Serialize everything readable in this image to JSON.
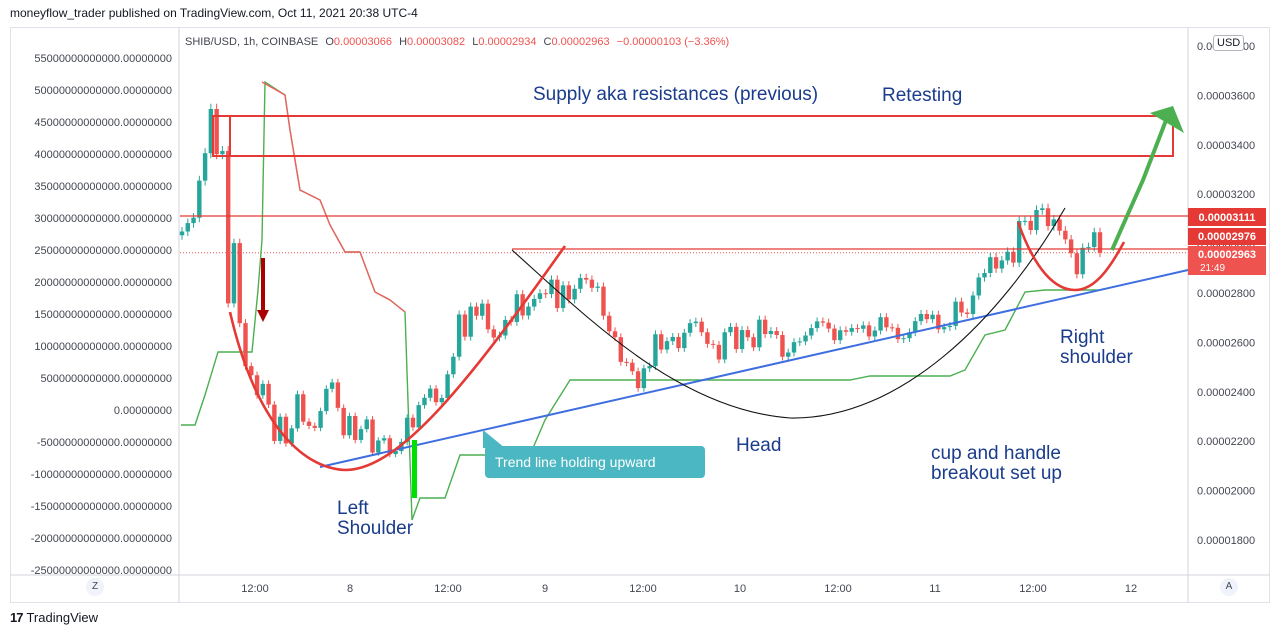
{
  "header": {
    "publisher": "moneyflow_trader published on TradingView.com, Oct 11, 2021 20:38 UTC-4"
  },
  "legend": {
    "symbol": "SHIB/USD, 1h, COINBASE",
    "o_label": "O",
    "o_value": "0.00003066",
    "h_label": "H",
    "h_value": "0.00003082",
    "l_label": "L",
    "l_value": "0.00002934",
    "c_label": "C",
    "c_value": "0.00002963",
    "change": "−0.00000103 (−3.36%)"
  },
  "currency_button": "USD",
  "footer": {
    "logo": "17",
    "brand": "TradingView"
  },
  "corner_left": "Z",
  "corner_right": "A",
  "price_labels": {
    "level1": "0.00003111",
    "level2": "0.00002976",
    "current": "0.00002963",
    "countdown": "21:49"
  },
  "annotations": {
    "supply": "Supply aka resistances (previous)",
    "retesting": "Retesting",
    "left1": "Left",
    "left2": "Shoulder",
    "head": "Head",
    "right1": "Right",
    "right2": "shoulder",
    "cup1": "cup and handle",
    "cup2": "breakout set up",
    "trend_callout": "Trend line holding upward"
  },
  "colors": {
    "up": "#26a69a",
    "down": "#ef5350",
    "annotation_text": "#1a3c8c",
    "trendline": "#3f6ee0",
    "green_line": "#4caf50",
    "resistance": "#e53935"
  },
  "chart_data": {
    "type": "candlestick",
    "symbol": "SHIB/USD",
    "timeframe": "1h",
    "exchange": "COINBASE",
    "right_axis": {
      "ticks": [
        "0.00003800",
        "0.00003600",
        "0.00003400",
        "0.00003200",
        "0.00003000",
        "0.00002800",
        "0.00002600",
        "0.00002400",
        "0.00002200",
        "0.00002000",
        "0.00001800"
      ],
      "ylim": [
        1.71e-05,
        3.83e-05
      ]
    },
    "left_axis": {
      "ticks": [
        "55000000000000.00000000",
        "50000000000000.00000000",
        "45000000000000.00000000",
        "40000000000000.00000000",
        "35000000000000.00000000",
        "30000000000000.00000000",
        "25000000000000.00000000",
        "20000000000000.00000000",
        "15000000000000.00000000",
        "10000000000000.00000000",
        "5000000000000.00000000",
        "0.00000000",
        "-5000000000000.00000000",
        "-10000000000000.00000000",
        "-15000000000000.00000000",
        "-20000000000000.00000000",
        "-25000000000000.00000000"
      ],
      "ylim": [
        -25000000000000,
        55000000000000
      ]
    },
    "x_ticks": [
      "12:00",
      "8",
      "12:00",
      "9",
      "12:00",
      "10",
      "12:00",
      "11",
      "12:00",
      "12"
    ],
    "closes": [
      3.049e-05,
      3.083e-05,
      3.105e-05,
      3.255e-05,
      3.366e-05,
      3.545e-05,
      3.362e-05,
      3.375e-05,
      2.758e-05,
      3.002e-05,
      2.678e-05,
      2.504e-05,
      2.467e-05,
      2.386e-05,
      2.432e-05,
      2.348e-05,
      2.201e-05,
      2.299e-05,
      2.191e-05,
      2.252e-05,
      2.39e-05,
      2.279e-05,
      2.262e-05,
      2.254e-05,
      2.322e-05,
      2.412e-05,
      2.438e-05,
      2.335e-05,
      2.224e-05,
      2.302e-05,
      2.205e-05,
      2.249e-05,
      2.288e-05,
      2.154e-05,
      2.203e-05,
      2.212e-05,
      2.148e-05,
      2.16e-05,
      2.197e-05,
      2.295e-05,
      2.256e-05,
      2.346e-05,
      2.376e-05,
      2.413e-05,
      2.358e-05,
      2.375e-05,
      2.471e-05,
      2.542e-05,
      2.713e-05,
      2.623e-05,
      2.745e-05,
      2.708e-05,
      2.757e-05,
      2.653e-05,
      2.62e-05,
      2.628e-05,
      2.691e-05,
      2.683e-05,
      2.795e-05,
      2.709e-05,
      2.745e-05,
      2.776e-05,
      2.799e-05,
      2.796e-05,
      2.854e-05,
      2.739e-05,
      2.831e-05,
      2.774e-05,
      2.817e-05,
      2.861e-05,
      2.854e-05,
      2.821e-05,
      2.826e-05,
      2.708e-05,
      2.645e-05,
      2.621e-05,
      2.521e-05,
      2.518e-05,
      2.483e-05,
      2.415e-05,
      2.495e-05,
      2.504e-05,
      2.633e-05,
      2.571e-05,
      2.605e-05,
      2.622e-05,
      2.577e-05,
      2.639e-05,
      2.678e-05,
      2.684e-05,
      2.641e-05,
      2.594e-05,
      2.59e-05,
      2.531e-05,
      2.641e-05,
      2.663e-05,
      2.573e-05,
      2.65e-05,
      2.621e-05,
      2.58e-05,
      2.692e-05,
      2.634e-05,
      2.646e-05,
      2.63e-05,
      2.542e-05,
      2.559e-05,
      2.601e-05,
      2.604e-05,
      2.628e-05,
      2.658e-05,
      2.685e-05,
      2.68e-05,
      2.656e-05,
      2.609e-05,
      2.649e-05,
      2.643e-05,
      2.658e-05,
      2.655e-05,
      2.669e-05,
      2.624e-05,
      2.648e-05,
      2.702e-05,
      2.661e-05,
      2.659e-05,
      2.613e-05,
      2.617e-05,
      2.641e-05,
      2.686e-05,
      2.715e-05,
      2.694e-05,
      2.712e-05,
      2.653e-05,
      2.662e-05,
      2.667e-05,
      2.765e-05,
      2.721e-05,
      2.715e-05,
      2.79e-05,
      2.863e-05,
      2.881e-05,
      2.945e-05,
      2.899e-05,
      2.932e-05,
      2.967e-05,
      2.923e-05,
      3.092e-05,
      3.092e-05,
      3.055e-05,
      3.136e-05,
      3.143e-05,
      3.071e-05,
      3.098e-05,
      3.052e-05,
      3.017e-05,
      2.961e-05,
      2.876e-05,
      2.983e-05,
      2.986e-05,
      3.046e-05,
      2.963e-05
    ],
    "overlays": [
      "Supply zone (red rectangle) 0.00003400–0.00003530",
      "Resistance 0.00003111",
      "Resistance 0.00002976",
      "Rising trend line",
      "Cup arc",
      "Shoulder arcs",
      "Breakout arrow"
    ]
  }
}
